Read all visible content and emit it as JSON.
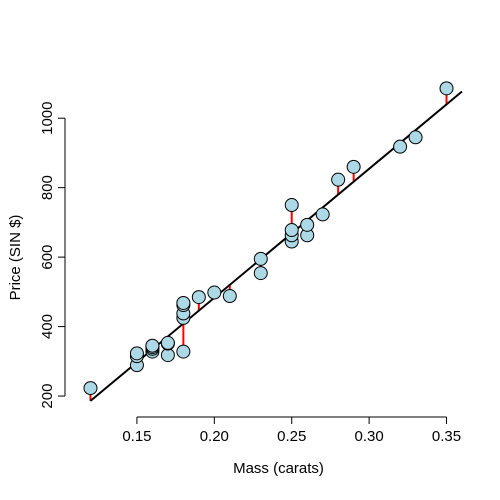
{
  "chart_data": {
    "type": "scatter",
    "xlabel": "Mass (carats)",
    "ylabel": "Price (SIN $)",
    "xlim": [
      0.11,
      0.36
    ],
    "ylim": [
      180,
      1110
    ],
    "xticks": [
      {
        "value": 0.15,
        "label": "0.15"
      },
      {
        "value": 0.2,
        "label": "0.20"
      },
      {
        "value": 0.25,
        "label": "0.25"
      },
      {
        "value": 0.3,
        "label": "0.30"
      },
      {
        "value": 0.35,
        "label": "0.35"
      }
    ],
    "yticks": [
      {
        "value": 200,
        "label": "200"
      },
      {
        "value": 400,
        "label": "400"
      },
      {
        "value": 600,
        "label": "600"
      },
      {
        "value": 800,
        "label": "800"
      },
      {
        "value": 1000,
        "label": "1000"
      }
    ],
    "grid": false,
    "points": [
      {
        "x": 0.12,
        "y": 223
      },
      {
        "x": 0.15,
        "y": 289
      },
      {
        "x": 0.15,
        "y": 315
      },
      {
        "x": 0.15,
        "y": 323
      },
      {
        "x": 0.16,
        "y": 328
      },
      {
        "x": 0.16,
        "y": 336
      },
      {
        "x": 0.16,
        "y": 341
      },
      {
        "x": 0.16,
        "y": 345
      },
      {
        "x": 0.17,
        "y": 318
      },
      {
        "x": 0.17,
        "y": 351
      },
      {
        "x": 0.17,
        "y": 353
      },
      {
        "x": 0.18,
        "y": 328
      },
      {
        "x": 0.18,
        "y": 425
      },
      {
        "x": 0.18,
        "y": 438
      },
      {
        "x": 0.18,
        "y": 462
      },
      {
        "x": 0.18,
        "y": 468
      },
      {
        "x": 0.19,
        "y": 485
      },
      {
        "x": 0.2,
        "y": 498
      },
      {
        "x": 0.21,
        "y": 488
      },
      {
        "x": 0.23,
        "y": 554
      },
      {
        "x": 0.23,
        "y": 595
      },
      {
        "x": 0.25,
        "y": 645
      },
      {
        "x": 0.25,
        "y": 663
      },
      {
        "x": 0.25,
        "y": 678
      },
      {
        "x": 0.25,
        "y": 750
      },
      {
        "x": 0.26,
        "y": 663
      },
      {
        "x": 0.26,
        "y": 693
      },
      {
        "x": 0.27,
        "y": 723
      },
      {
        "x": 0.28,
        "y": 823
      },
      {
        "x": 0.29,
        "y": 860
      },
      {
        "x": 0.32,
        "y": 918
      },
      {
        "x": 0.33,
        "y": 945
      },
      {
        "x": 0.35,
        "y": 1086
      }
    ],
    "fit_line": {
      "x": [
        0.12,
        0.36
      ],
      "y": [
        186,
        1077
      ]
    },
    "colors": {
      "point_fill": "#add8e6",
      "point_stroke": "#000000",
      "residual": "#ff0000",
      "fit_line": "#000000"
    }
  }
}
